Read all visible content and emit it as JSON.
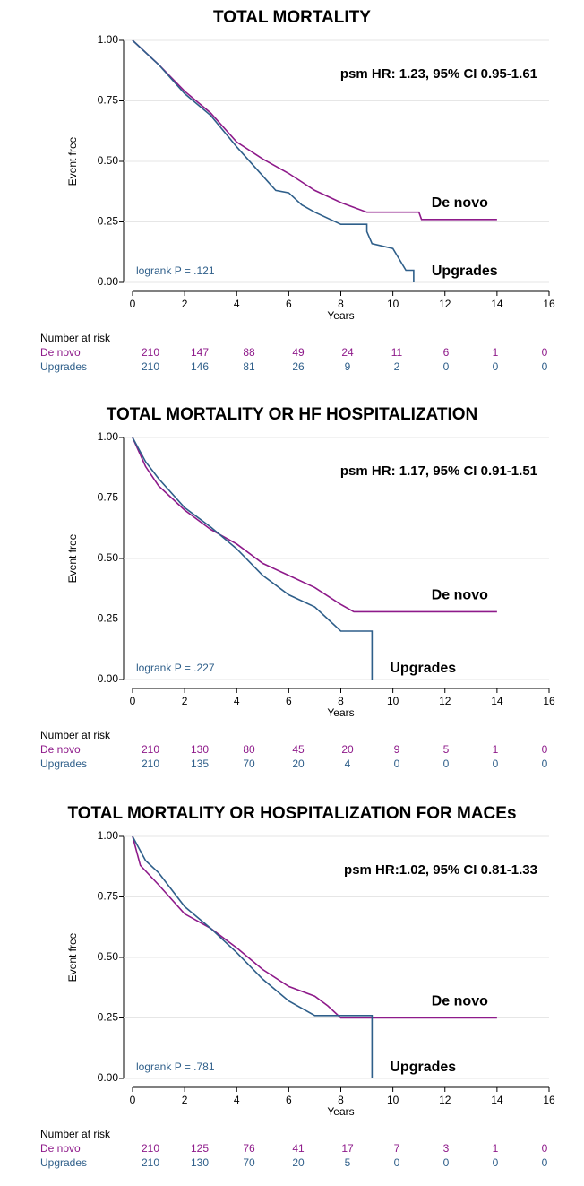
{
  "chart_data": [
    {
      "type": "line",
      "title": "TOTAL MORTALITY",
      "annotation": "psm HR: 1.23, 95%  CI 0.95-1.61",
      "test_label": "logrank P = .121",
      "x_label": "Years",
      "y_label": "Event free",
      "xlim": [
        0,
        16
      ],
      "xticks": [
        0,
        2,
        4,
        6,
        8,
        10,
        12,
        14,
        16
      ],
      "ylim": [
        0,
        1
      ],
      "yticks": [
        {
          "value": 0,
          "label": "0.00"
        },
        {
          "value": 0.25,
          "label": "0.25"
        },
        {
          "value": 0.5,
          "label": "0.50"
        },
        {
          "value": 0.75,
          "label": "0.75"
        },
        {
          "value": 1,
          "label": "1.00"
        }
      ],
      "grid": true,
      "risk_table_title": "Number at risk",
      "series": [
        {
          "name": "De novo",
          "color": "#8e1a8a",
          "x": [
            0,
            1,
            2,
            3,
            4,
            5,
            6,
            7,
            8,
            9,
            11,
            11.1,
            14
          ],
          "y": [
            1,
            0.9,
            0.79,
            0.7,
            0.58,
            0.51,
            0.45,
            0.38,
            0.33,
            0.29,
            0.29,
            0.26,
            0.26
          ],
          "at_risk": [
            210,
            147,
            88,
            49,
            24,
            11,
            6,
            1,
            0
          ]
        },
        {
          "name": "Upgrades",
          "color": "#2f5f8a",
          "x": [
            0,
            1,
            2,
            3,
            4,
            5,
            5.5,
            6,
            6.5,
            7,
            8,
            9,
            9,
            9.2,
            10,
            10.5,
            10.8,
            10.8
          ],
          "y": [
            1,
            0.9,
            0.78,
            0.69,
            0.56,
            0.44,
            0.38,
            0.37,
            0.32,
            0.29,
            0.24,
            0.24,
            0.21,
            0.16,
            0.14,
            0.05,
            0.05,
            0
          ],
          "at_risk": [
            210,
            146,
            81,
            26,
            9,
            2,
            0,
            0,
            0
          ]
        }
      ]
    },
    {
      "type": "line",
      "title": "TOTAL MORTALITY OR HF HOSPITALIZATION",
      "annotation": "psm HR: 1.17, 95%  CI 0.91-1.51",
      "test_label": "logrank P = .227",
      "x_label": "Years",
      "y_label": "Event free",
      "xlim": [
        0,
        16
      ],
      "xticks": [
        0,
        2,
        4,
        6,
        8,
        10,
        12,
        14,
        16
      ],
      "ylim": [
        0,
        1
      ],
      "yticks": [
        {
          "value": 0,
          "label": "0.00"
        },
        {
          "value": 0.25,
          "label": "0.25"
        },
        {
          "value": 0.5,
          "label": "0.50"
        },
        {
          "value": 0.75,
          "label": "0.75"
        },
        {
          "value": 1,
          "label": "1.00"
        }
      ],
      "grid": true,
      "risk_table_title": "Number at risk",
      "series": [
        {
          "name": "De novo",
          "color": "#8e1a8a",
          "x": [
            0,
            0.5,
            1,
            2,
            3,
            4,
            5,
            6,
            7,
            8,
            8.5,
            14
          ],
          "y": [
            1,
            0.88,
            0.8,
            0.7,
            0.62,
            0.56,
            0.48,
            0.43,
            0.38,
            0.31,
            0.28,
            0.28
          ],
          "at_risk": [
            210,
            130,
            80,
            45,
            20,
            9,
            5,
            1,
            0
          ]
        },
        {
          "name": "Upgrades",
          "color": "#2f5f8a",
          "x": [
            0,
            0.5,
            1,
            2,
            3,
            4,
            5,
            6,
            7,
            7.5,
            8,
            9.2,
            9.2
          ],
          "y": [
            1,
            0.9,
            0.83,
            0.71,
            0.63,
            0.54,
            0.43,
            0.35,
            0.3,
            0.25,
            0.2,
            0.2,
            0
          ],
          "at_risk": [
            210,
            135,
            70,
            20,
            4,
            0,
            0,
            0,
            0
          ]
        }
      ]
    },
    {
      "type": "line",
      "title": "TOTAL MORTALITY OR HOSPITALIZATION FOR MACEs",
      "annotation": "psm HR:1.02, 95%  CI 0.81-1.33",
      "test_label": "logrank P = .781",
      "x_label": "Years",
      "y_label": "Event free",
      "xlim": [
        0,
        16
      ],
      "xticks": [
        0,
        2,
        4,
        6,
        8,
        10,
        12,
        14,
        16
      ],
      "ylim": [
        0,
        1
      ],
      "yticks": [
        {
          "value": 0,
          "label": "0.00"
        },
        {
          "value": 0.25,
          "label": "0.25"
        },
        {
          "value": 0.5,
          "label": "0.50"
        },
        {
          "value": 0.75,
          "label": "0.75"
        },
        {
          "value": 1,
          "label": "1.00"
        }
      ],
      "grid": true,
      "risk_table_title": "Number at risk",
      "series": [
        {
          "name": "De novo",
          "color": "#8e1a8a",
          "x": [
            0,
            0.3,
            1,
            2,
            3,
            4,
            5,
            6,
            7,
            7.5,
            8,
            14
          ],
          "y": [
            1,
            0.88,
            0.8,
            0.68,
            0.62,
            0.54,
            0.45,
            0.38,
            0.34,
            0.3,
            0.25,
            0.25
          ],
          "at_risk": [
            210,
            125,
            76,
            41,
            17,
            7,
            3,
            1,
            0
          ]
        },
        {
          "name": "Upgrades",
          "color": "#2f5f8a",
          "x": [
            0,
            0.5,
            1,
            2,
            3,
            4,
            5,
            6,
            7,
            9.2,
            9.2
          ],
          "y": [
            1,
            0.9,
            0.85,
            0.71,
            0.62,
            0.52,
            0.41,
            0.32,
            0.26,
            0.26,
            0
          ],
          "at_risk": [
            210,
            130,
            70,
            20,
            5,
            0,
            0,
            0,
            0
          ]
        }
      ]
    }
  ]
}
